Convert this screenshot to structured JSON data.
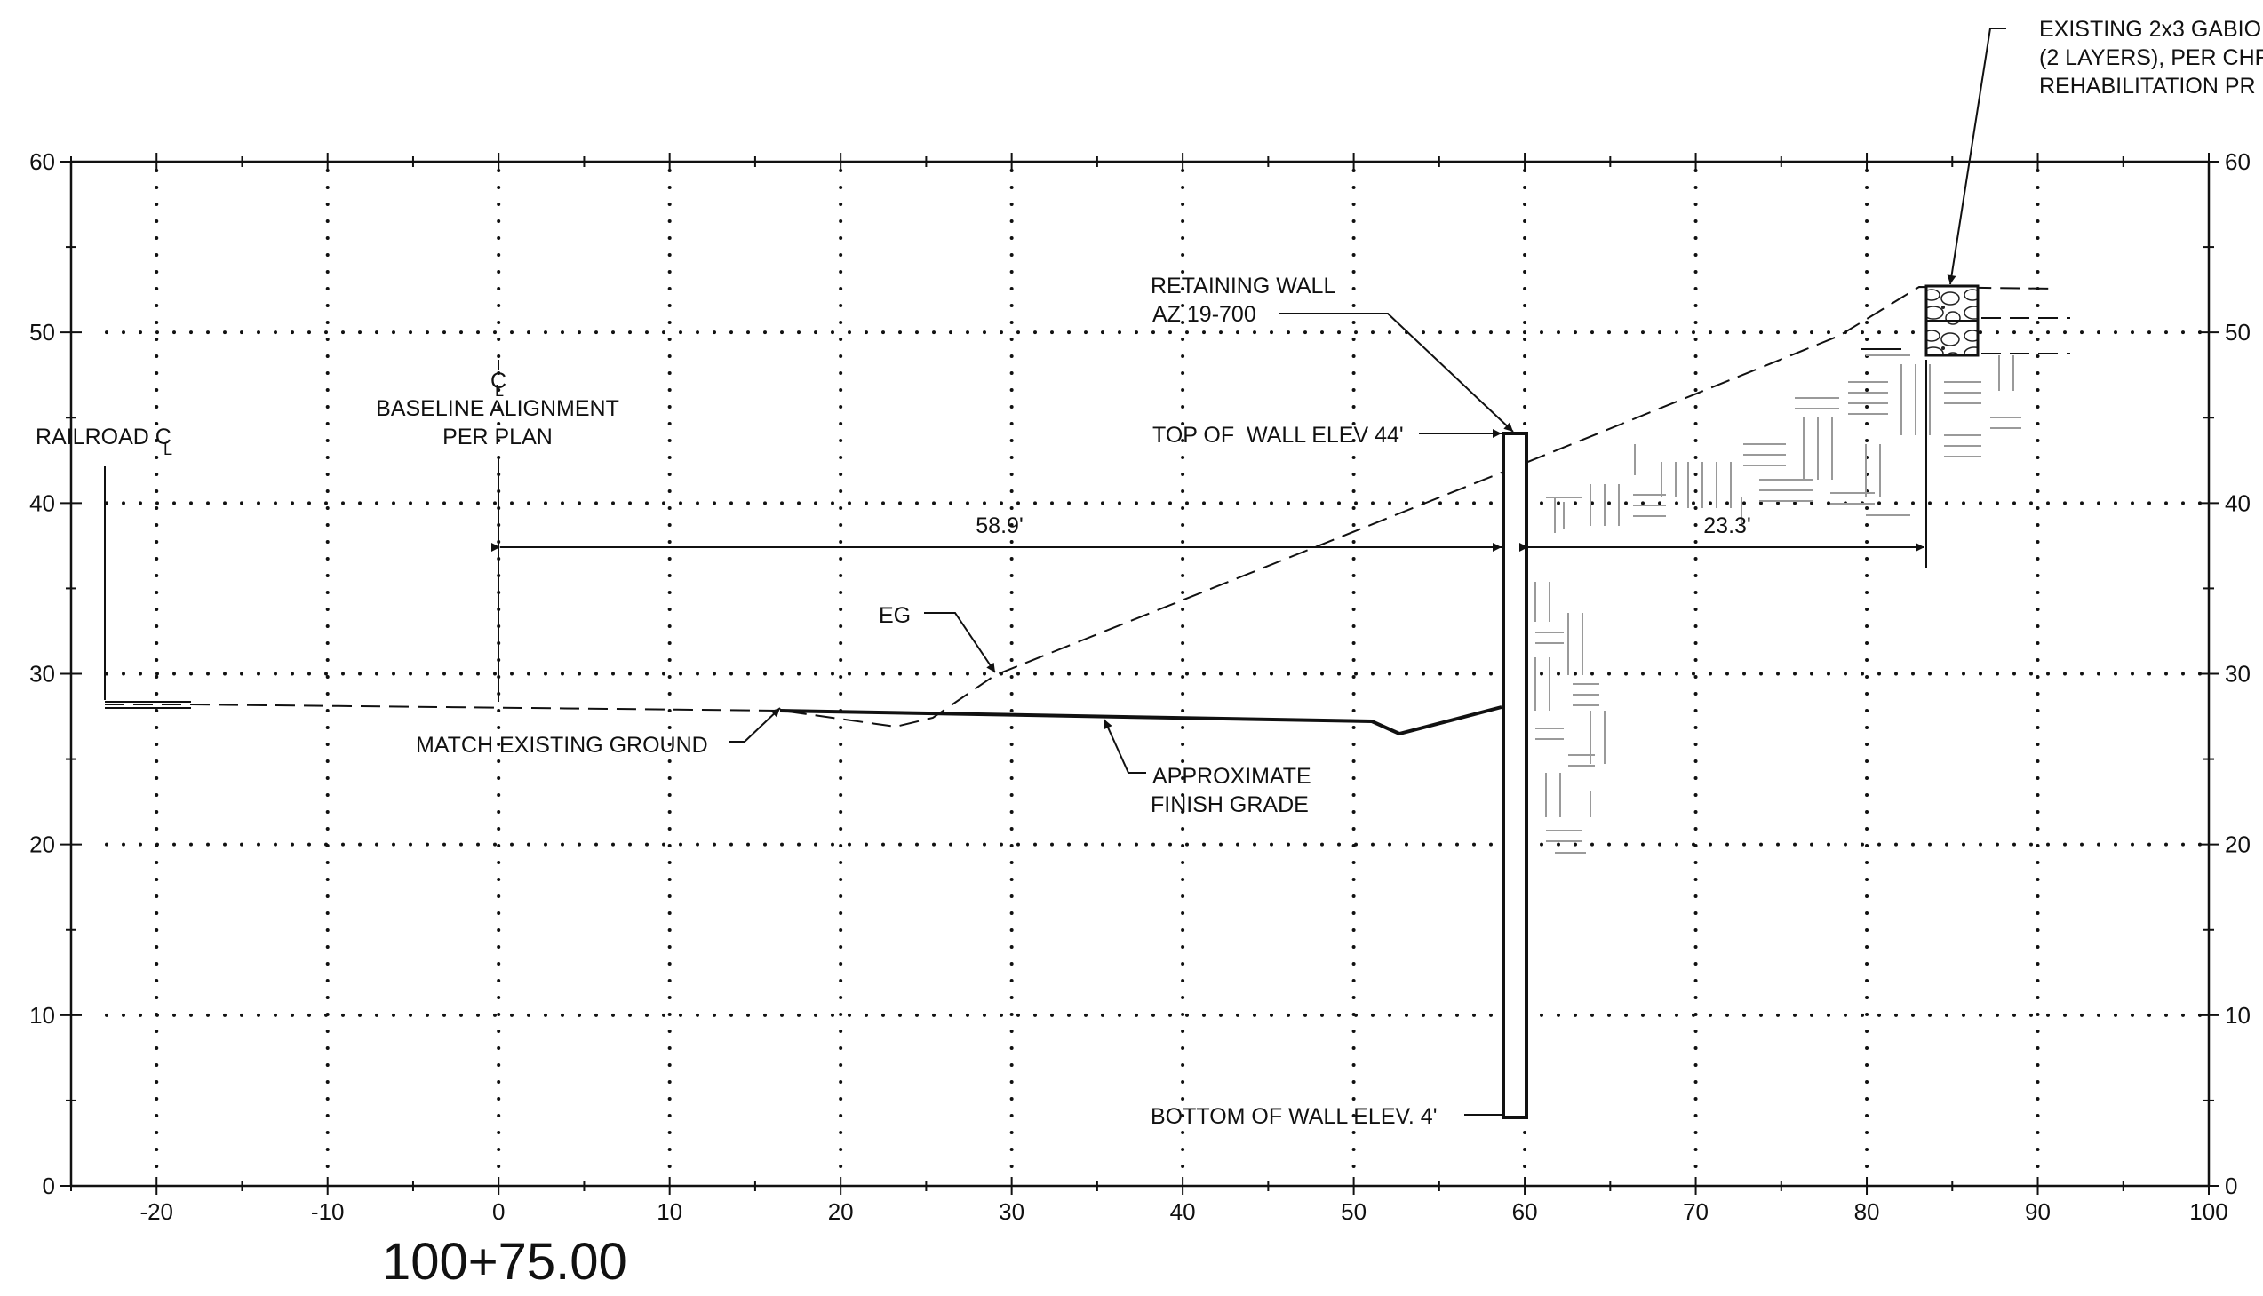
{
  "drawing": {
    "station": "100+75.00",
    "x_ticks": [
      "-20",
      "-10",
      "0",
      "10",
      "20",
      "30",
      "40",
      "50",
      "60",
      "70",
      "80",
      "90",
      "100"
    ],
    "y_ticks_left": [
      "0",
      "10",
      "20",
      "30",
      "40",
      "50",
      "60"
    ],
    "y_ticks_right": [
      "0",
      "10",
      "20",
      "30",
      "40",
      "50",
      "60"
    ],
    "x_range": [
      -25,
      100
    ],
    "y_range": [
      0,
      60
    ]
  },
  "labels": {
    "gabion_note_line1": "EXISTING 2x3 GABIO",
    "gabion_note_line2": "(2 LAYERS), PER CHR",
    "gabion_note_line3": "REHABILITATION PR",
    "retaining_wall_line1": "RETAINING WALL",
    "retaining_wall_line2": "AZ 19-700",
    "top_of_wall": "TOP OF  WALL ELEV 44'",
    "bottom_of_wall": "BOTTOM OF WALL ELEV. 4'",
    "railroad_cl": "RAILROAD C",
    "cl_symbol_sub": "L",
    "baseline_cl": "C",
    "baseline_line1": "BASELINE ALIGNMENT",
    "baseline_line2": "PER PLAN",
    "dim_left": "58.9'",
    "dim_right": "23.3'",
    "eg": "EG",
    "match_existing": "MATCH EXISTING GROUND",
    "finish_grade_line1": "APPROXIMATE",
    "finish_grade_line2": "FINISH GRADE"
  }
}
